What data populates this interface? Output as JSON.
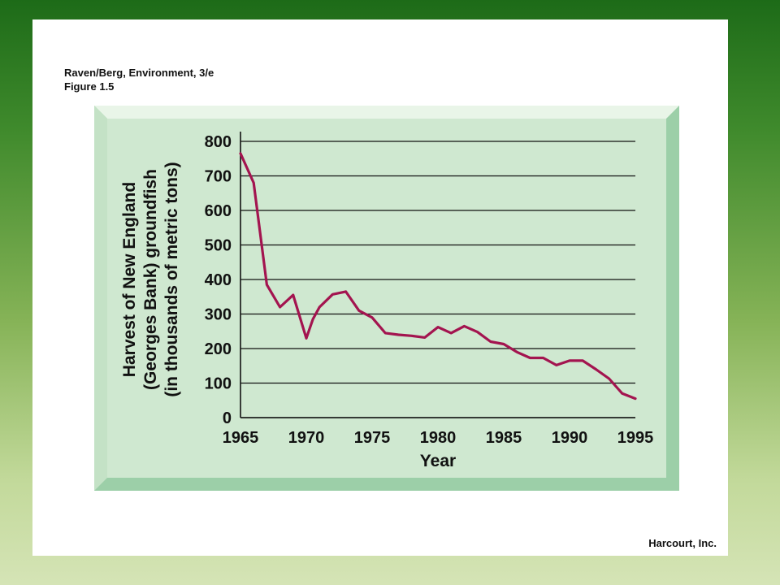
{
  "source": {
    "line1": "Raven/Berg, Environment, 3/e",
    "line2": "Figure 1.5"
  },
  "credit": "Harcourt, Inc.",
  "colors": {
    "panel_face": "#cfe8d0",
    "panel_bevel_light": "#e9f5e8",
    "panel_bevel_dark": "#9ccfa8",
    "line": "#a3144f",
    "grid": "#111111"
  },
  "chart_data": {
    "type": "line",
    "title": "",
    "xlabel": "Year",
    "ylabel_lines": [
      "Harvest of New England",
      "(Georges Bank) groundfish",
      "(in thousands of metric tons)"
    ],
    "xlim": [
      1965,
      1995
    ],
    "ylim": [
      0,
      800
    ],
    "x_ticks": [
      "1965",
      "1970",
      "1975",
      "1980",
      "1985",
      "1990",
      "1995"
    ],
    "y_ticks": [
      "0",
      "100",
      "200",
      "300",
      "400",
      "500",
      "600",
      "700",
      "800"
    ],
    "grid": "horizontal",
    "series": [
      {
        "x": [
          1965,
          1966,
          1967,
          1968,
          1969,
          1970,
          1970.5,
          1971,
          1972,
          1973,
          1974,
          1975,
          1976,
          1977,
          1978,
          1979,
          1980,
          1981,
          1982,
          1983,
          1984,
          1985,
          1986,
          1987,
          1988,
          1989,
          1990,
          1991,
          1992,
          1993,
          1994,
          1995
        ],
        "y": [
          765,
          680,
          385,
          320,
          355,
          230,
          285,
          320,
          357,
          365,
          310,
          290,
          245,
          240,
          237,
          232,
          262,
          245,
          265,
          248,
          220,
          213,
          190,
          173,
          173,
          152,
          165,
          165,
          140,
          113,
          70,
          55
        ]
      }
    ]
  }
}
